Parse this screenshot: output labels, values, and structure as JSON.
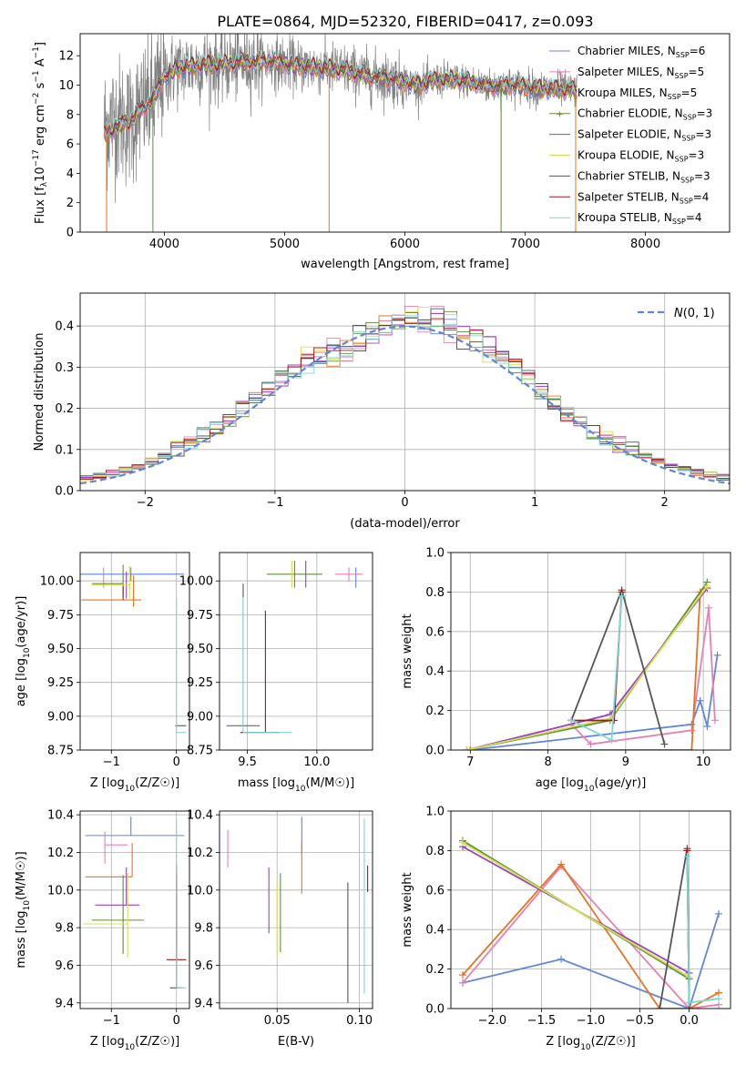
{
  "figure": {
    "title": "PLATE=0864, MJD=52320, FIBERID=0417, z=0.093"
  },
  "colors": {
    "chabrier_miles": "#5f86d9",
    "salpeter_miles": "#e680b4",
    "kroupa_miles": "#e8731f",
    "chabrier_elodie": "#5c8f3a",
    "salpeter_elodie": "#9a3fc4",
    "kroupa_elodie": "#d6e04a",
    "chabrier_stelib": "#555555",
    "salpeter_stelib": "#a01818",
    "kroupa_stelib": "#7fd6d6",
    "data": "#808080",
    "normal": "#5f86d9"
  },
  "legend_entries": [
    {
      "key": "chabrier_miles",
      "text": "Chabrier MILES, N",
      "sub": "SSP",
      "tail": "=6"
    },
    {
      "key": "salpeter_miles",
      "text": "Salpeter MILES, N",
      "sub": "SSP",
      "tail": "=5"
    },
    {
      "key": "kroupa_miles",
      "text": "Kroupa MILES, N",
      "sub": "SSP",
      "tail": "=5"
    },
    {
      "key": "chabrier_elodie",
      "text": "Chabrier ELODIE, N",
      "sub": "SSP",
      "tail": "=3"
    },
    {
      "key": "salpeter_elodie",
      "text": "Salpeter ELODIE, N",
      "sub": "SSP",
      "tail": "=3"
    },
    {
      "key": "kroupa_elodie",
      "text": "Kroupa ELODIE, N",
      "sub": "SSP",
      "tail": "=3"
    },
    {
      "key": "chabrier_stelib",
      "text": "Chabrier STELIB, N",
      "sub": "SSP",
      "tail": "=3"
    },
    {
      "key": "salpeter_stelib",
      "text": "Salpeter STELIB, N",
      "sub": "SSP",
      "tail": "=4"
    },
    {
      "key": "kroupa_stelib",
      "text": "Kroupa STELIB, N",
      "sub": "SSP",
      "tail": "=4"
    }
  ],
  "chart_data": [
    {
      "id": "spectrum",
      "type": "line",
      "xlabel": "wavelength [Angstrom, rest frame]",
      "ylabel": "Flux [f",
      "ylabel_parts": [
        "Flux [f",
        "λ",
        "10",
        "−17",
        " erg cm",
        "−2",
        " s",
        "−1",
        " A",
        "−1",
        "]"
      ],
      "xlim": [
        3300,
        8700
      ],
      "ylim": [
        0,
        13.5
      ],
      "xticks": [
        4000,
        5000,
        6000,
        7000,
        8000
      ],
      "yticks": [
        0,
        2,
        4,
        6,
        8,
        10,
        12
      ],
      "grid": false,
      "legend": "right",
      "x_range": [
        3500,
        7430
      ],
      "continuum_points": [
        [
          3500,
          7.2
        ],
        [
          3600,
          7.8
        ],
        [
          3700,
          7.4
        ],
        [
          3800,
          8.3
        ],
        [
          3900,
          9.0
        ],
        [
          4000,
          10.6
        ],
        [
          4100,
          11.1
        ],
        [
          4300,
          11.4
        ],
        [
          4500,
          11.4
        ],
        [
          4700,
          11.6
        ],
        [
          4900,
          11.6
        ],
        [
          5100,
          11.3
        ],
        [
          5300,
          11.2
        ],
        [
          5500,
          11.0
        ],
        [
          5700,
          10.6
        ],
        [
          5900,
          10.4
        ],
        [
          6100,
          10.0
        ],
        [
          6300,
          10.4
        ],
        [
          6500,
          10.3
        ],
        [
          6700,
          9.9
        ],
        [
          6900,
          10.0
        ],
        [
          7100,
          9.8
        ],
        [
          7300,
          9.7
        ],
        [
          7430,
          9.6
        ]
      ],
      "dropouts": [
        3520,
        3905,
        5370,
        6800,
        7420
      ]
    },
    {
      "id": "residuals",
      "type": "line",
      "xlabel": "(data-model)/error",
      "ylabel": "Normed distribution",
      "xlim": [
        -2.5,
        2.5
      ],
      "ylim": [
        0,
        0.48
      ],
      "xticks": [
        -2,
        -1,
        0,
        1,
        2
      ],
      "yticks": [
        0.0,
        0.1,
        0.2,
        0.3,
        0.4
      ],
      "grid": true,
      "legend": "top-right",
      "legend_label": "N(0,1)",
      "hist_bin_width": 0.1
    },
    {
      "id": "age_vs_Z",
      "type": "scatter",
      "xlabel": "Z [log10(Z/Z☉)]",
      "ylabel": "age  [log10(age/yr)]",
      "xlim": [
        -1.48,
        0.2
      ],
      "ylim": [
        8.75,
        10.21
      ],
      "xticks": [
        -1,
        0
      ],
      "yticks": [
        8.75,
        9.0,
        9.25,
        9.5,
        9.75,
        10.0
      ],
      "grid": true,
      "errorbars": [
        {
          "key": "chabrier_miles",
          "x": -0.7,
          "xerr": [
            0.78,
            0.82
          ],
          "y": 10.05,
          "yerr": [
            0.05,
            0.05
          ]
        },
        {
          "key": "salpeter_miles",
          "x": -1.12,
          "xerr": [
            0.0,
            0.0
          ],
          "y": 10.05,
          "yerr": [
            0.1,
            0.05
          ]
        },
        {
          "key": "kroupa_miles",
          "x": -0.66,
          "xerr": [
            0.8,
            0.12
          ],
          "y": 9.86,
          "yerr": [
            0.05,
            0.18
          ]
        },
        {
          "key": "chabrier_elodie",
          "x": -0.82,
          "xerr": [
            0.48,
            0.0
          ],
          "y": 9.98,
          "yerr": [
            0.1,
            0.14
          ]
        },
        {
          "key": "salpeter_elodie",
          "x": -0.77,
          "xerr": [
            0.0,
            0.0
          ],
          "y": 9.97,
          "yerr": [
            0.1,
            0.1
          ]
        },
        {
          "key": "kroupa_elodie",
          "x": -0.72,
          "xerr": [
            0.58,
            0.0
          ],
          "y": 9.97,
          "yerr": [
            0.1,
            0.14
          ]
        },
        {
          "key": "chabrier_stelib",
          "x": 0.0,
          "xerr": [
            0.02,
            0.15
          ],
          "y": 8.93,
          "yerr": [
            0.0,
            0.0
          ]
        },
        {
          "key": "salpeter_stelib",
          "x": -0.82,
          "xerr": [
            0.0,
            0.0
          ],
          "y": 9.96,
          "yerr": [
            0.1,
            0.0
          ]
        },
        {
          "key": "kroupa_stelib",
          "x": 0.0,
          "xerr": [
            0.0,
            0.15
          ],
          "y": 8.88,
          "yerr": [
            0.0,
            1.0
          ]
        }
      ]
    },
    {
      "id": "age_vs_mass",
      "type": "scatter",
      "xlabel": "mass [log10(M/M☉)]",
      "ylabel": "",
      "xlim": [
        9.3,
        10.4
      ],
      "ylim": [
        8.75,
        10.21
      ],
      "xticks": [
        9.5,
        10.0
      ],
      "yticks": [
        8.75,
        9.0,
        9.25,
        9.5,
        9.75,
        10.0
      ],
      "grid": true,
      "errorbars": [
        {
          "key": "chabrier_miles",
          "x": 10.28,
          "xerr": [
            0.0,
            0.0
          ],
          "y": 10.05,
          "yerr": [
            0.1,
            0.05
          ]
        },
        {
          "key": "salpeter_miles",
          "x": 10.23,
          "xerr": [
            0.1,
            0.1
          ],
          "y": 10.05,
          "yerr": [
            0.05,
            0.05
          ]
        },
        {
          "key": "kroupa_miles",
          "x": 10.07,
          "xerr": [
            0.0,
            0.0
          ],
          "y": 10.05,
          "yerr": [
            0.0,
            0.0
          ]
        },
        {
          "key": "chabrier_elodie",
          "x": 9.84,
          "xerr": [
            0.2,
            0.2
          ],
          "y": 10.05,
          "yerr": [
            0.1,
            0.1
          ]
        },
        {
          "key": "salpeter_elodie",
          "x": 9.92,
          "xerr": [
            0.0,
            0.0
          ],
          "y": 10.05,
          "yerr": [
            0.1,
            0.1
          ]
        },
        {
          "key": "kroupa_elodie",
          "x": 9.82,
          "xerr": [
            0.0,
            0.0
          ],
          "y": 10.05,
          "yerr": [
            0.1,
            0.1
          ]
        },
        {
          "key": "chabrier_stelib",
          "x": 9.47,
          "xerr": [
            0.12,
            0.12
          ],
          "y": 8.93,
          "yerr": [
            0.0,
            1.05
          ]
        },
        {
          "key": "salpeter_stelib",
          "x": 9.63,
          "xerr": [
            0.18,
            0.1
          ],
          "y": 8.88,
          "yerr": [
            0.0,
            0.9
          ]
        },
        {
          "key": "kroupa_stelib",
          "x": 9.47,
          "xerr": [
            0.0,
            0.35
          ],
          "y": 8.88,
          "yerr": [
            0.0,
            1.0
          ]
        }
      ]
    },
    {
      "id": "massweight_vs_age",
      "type": "line",
      "xlabel": "age  [log10(age/yr)]",
      "ylabel": "mass weight",
      "xlim": [
        6.75,
        10.35
      ],
      "ylim": [
        0,
        1
      ],
      "xticks": [
        7,
        8,
        9,
        10
      ],
      "yticks": [
        0.0,
        0.2,
        0.4,
        0.6,
        0.8,
        1.0
      ],
      "grid": true,
      "series": [
        {
          "key": "chabrier_miles",
          "x": [
            7.0,
            9.85,
            9.96,
            10.05,
            10.18
          ],
          "y": [
            0.0,
            0.13,
            0.25,
            0.12,
            0.48
          ]
        },
        {
          "key": "salpeter_miles",
          "x": [
            8.3,
            8.55,
            9.85,
            10.07,
            10.15
          ],
          "y": [
            0.13,
            0.03,
            0.1,
            0.72,
            0.15
          ]
        },
        {
          "key": "kroupa_miles",
          "x": [
            7.0,
            9.85,
            9.96
          ],
          "y": [
            0.0,
            0.0,
            0.8
          ]
        },
        {
          "key": "chabrier_elodie",
          "x": [
            6.95,
            8.8,
            10.05
          ],
          "y": [
            0.0,
            0.15,
            0.85
          ]
        },
        {
          "key": "salpeter_elodie",
          "x": [
            6.95,
            8.8,
            10.05
          ],
          "y": [
            0.0,
            0.18,
            0.82
          ]
        },
        {
          "key": "kroupa_elodie",
          "x": [
            6.95,
            8.8,
            10.05
          ],
          "y": [
            0.0,
            0.16,
            0.83
          ]
        },
        {
          "key": "chabrier_stelib",
          "x": [
            8.3,
            8.95,
            9.5
          ],
          "y": [
            0.15,
            0.81,
            0.03
          ]
        },
        {
          "key": "salpeter_stelib",
          "x": [
            8.3,
            8.85,
            8.95
          ],
          "y": [
            0.15,
            0.15,
            0.8
          ]
        },
        {
          "key": "kroupa_stelib",
          "x": [
            8.3,
            8.82,
            8.95
          ],
          "y": [
            0.15,
            0.05,
            0.78
          ]
        }
      ]
    },
    {
      "id": "mass_vs_Z",
      "type": "scatter",
      "xlabel": "Z [log10(Z/Z☉)]",
      "ylabel": "mass [log10(M/M☉)]",
      "xlim": [
        -1.48,
        0.2
      ],
      "ylim": [
        9.37,
        10.42
      ],
      "xticks": [
        -1,
        0
      ],
      "yticks": [
        9.4,
        9.6,
        9.8,
        10.0,
        10.2,
        10.4
      ],
      "grid": true,
      "errorbars": [
        {
          "key": "chabrier_miles",
          "x": -0.7,
          "xerr": [
            0.7,
            0.82
          ],
          "y": 10.29,
          "yerr": [
            0.0,
            0.1
          ]
        },
        {
          "key": "salpeter_miles",
          "x": -1.1,
          "xerr": [
            0.0,
            0.35
          ],
          "y": 10.24,
          "yerr": [
            0.1,
            0.07
          ]
        },
        {
          "key": "kroupa_miles",
          "x": -0.68,
          "xerr": [
            0.72,
            0.0
          ],
          "y": 10.07,
          "yerr": [
            0.0,
            0.18
          ]
        },
        {
          "key": "chabrier_elodie",
          "x": -0.82,
          "xerr": [
            0.48,
            0.32
          ],
          "y": 9.84,
          "yerr": [
            0.18,
            0.24
          ]
        },
        {
          "key": "salpeter_elodie",
          "x": -0.77,
          "xerr": [
            0.48,
            0.2
          ],
          "y": 9.92,
          "yerr": [
            0.0,
            0.2
          ]
        },
        {
          "key": "kroupa_elodie",
          "x": -0.75,
          "xerr": [
            0.68,
            0.0
          ],
          "y": 9.82,
          "yerr": [
            0.18,
            0.27
          ]
        },
        {
          "key": "chabrier_stelib",
          "x": 0.0,
          "xerr": [
            0.1,
            0.1
          ],
          "y": 9.48,
          "yerr": [
            0.0,
            0.6
          ]
        },
        {
          "key": "salpeter_stelib",
          "x": 0.0,
          "xerr": [
            0.15,
            0.15
          ],
          "y": 9.63,
          "yerr": [
            0.0,
            0.5
          ]
        },
        {
          "key": "kroupa_stelib",
          "x": 0.0,
          "xerr": [
            0.0,
            0.15
          ],
          "y": 9.48,
          "yerr": [
            0.0,
            0.9
          ]
        }
      ]
    },
    {
      "id": "mass_vs_ebv",
      "type": "scatter",
      "xlabel": "E(B-V)",
      "ylabel": "",
      "xlim": [
        0.015,
        0.108
      ],
      "ylim": [
        9.37,
        10.42
      ],
      "xticks": [
        0.05,
        0.1
      ],
      "yticks": [
        9.4,
        9.6,
        9.8,
        10.0,
        10.2,
        10.4
      ],
      "grid": true,
      "errorbars": [
        {
          "key": "chabrier_miles",
          "x": 0.065,
          "xerr": [
            0.0,
            0.0
          ],
          "y": 10.29,
          "yerr": [
            0.1,
            0.1
          ]
        },
        {
          "key": "salpeter_miles",
          "x": 0.02,
          "xerr": [
            0.0,
            0.0
          ],
          "y": 10.22,
          "yerr": [
            0.1,
            0.1
          ]
        },
        {
          "key": "kroupa_miles",
          "x": 0.065,
          "xerr": [
            0.0,
            0.0
          ],
          "y": 10.1,
          "yerr": [
            0.12,
            0.16
          ]
        },
        {
          "key": "chabrier_elodie",
          "x": 0.052,
          "xerr": [
            0.0,
            0.0
          ],
          "y": 9.87,
          "yerr": [
            0.2,
            0.22
          ]
        },
        {
          "key": "salpeter_elodie",
          "x": 0.045,
          "xerr": [
            0.0,
            0.0
          ],
          "y": 9.95,
          "yerr": [
            0.18,
            0.17
          ]
        },
        {
          "key": "kroupa_elodie",
          "x": 0.05,
          "xerr": [
            0.0,
            0.0
          ],
          "y": 9.85,
          "yerr": [
            0.2,
            0.2
          ]
        },
        {
          "key": "chabrier_stelib",
          "x": 0.093,
          "xerr": [
            0.0,
            0.0
          ],
          "y": 9.72,
          "yerr": [
            0.32,
            0.32
          ]
        },
        {
          "key": "salpeter_stelib",
          "x": 0.105,
          "xerr": [
            0.0,
            0.0
          ],
          "y": 10.06,
          "yerr": [
            0.07,
            0.07
          ]
        },
        {
          "key": "kroupa_stelib",
          "x": 0.103,
          "xerr": [
            0.0,
            0.0
          ],
          "y": 9.9,
          "yerr": [
            0.45,
            0.48
          ]
        }
      ]
    },
    {
      "id": "massweight_vs_Z",
      "type": "line",
      "xlabel": "Z [log10(Z/Z☉)]",
      "ylabel": "mass weight",
      "xlim": [
        -2.42,
        0.42
      ],
      "ylim": [
        0,
        1
      ],
      "xticks": [
        -2.0,
        -1.5,
        -1.0,
        -0.5,
        0.0
      ],
      "yticks": [
        0.0,
        0.2,
        0.4,
        0.6,
        0.8,
        1.0
      ],
      "grid": true,
      "series": [
        {
          "key": "chabrier_miles",
          "x": [
            -2.3,
            -1.3,
            0.0,
            0.3
          ],
          "y": [
            0.13,
            0.25,
            0.0,
            0.48
          ]
        },
        {
          "key": "salpeter_miles",
          "x": [
            -2.3,
            -1.3,
            0.0,
            0.3
          ],
          "y": [
            0.13,
            0.72,
            0.0,
            0.02
          ]
        },
        {
          "key": "kroupa_miles",
          "x": [
            -2.3,
            -1.3,
            -0.3,
            0.0,
            0.3
          ],
          "y": [
            0.17,
            0.73,
            0.0,
            0.0,
            0.08
          ]
        },
        {
          "key": "chabrier_elodie",
          "x": [
            -2.3,
            0.0
          ],
          "y": [
            0.85,
            0.15
          ]
        },
        {
          "key": "salpeter_elodie",
          "x": [
            -2.3,
            0.0
          ],
          "y": [
            0.82,
            0.18
          ]
        },
        {
          "key": "kroupa_elodie",
          "x": [
            -2.3,
            0.0
          ],
          "y": [
            0.84,
            0.16
          ]
        },
        {
          "key": "chabrier_stelib",
          "x": [
            -0.3,
            -0.02,
            0.0
          ],
          "y": [
            0.0,
            0.81,
            0.0
          ]
        },
        {
          "key": "salpeter_stelib",
          "x": [
            -0.02,
            0.0
          ],
          "y": [
            0.8,
            0.03
          ]
        },
        {
          "key": "kroupa_stelib",
          "x": [
            -0.02,
            0.0,
            0.3
          ],
          "y": [
            0.77,
            0.03,
            0.05
          ]
        }
      ]
    }
  ]
}
